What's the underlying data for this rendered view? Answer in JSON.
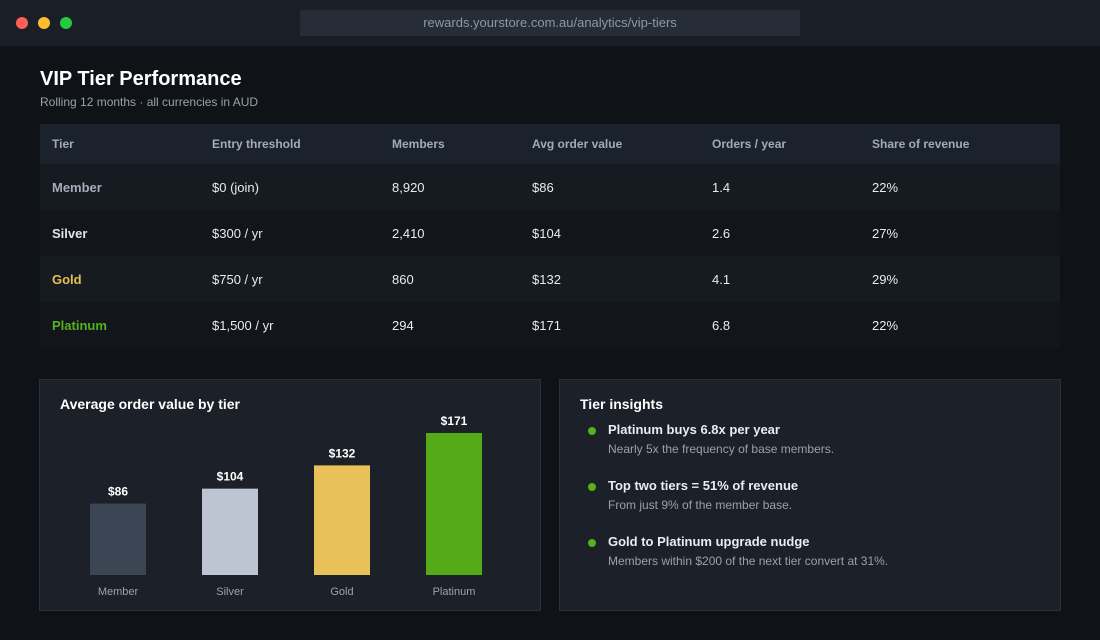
{
  "browser": {
    "url": "rewards.yourstore.com.au/analytics/vip-tiers"
  },
  "header": {
    "title": "VIP Tier Performance",
    "subtitle": "Rolling 12 months · all currencies in AUD"
  },
  "table": {
    "columns": [
      "Tier",
      "Entry threshold",
      "Members",
      "Avg order value",
      "Orders / year",
      "Share of revenue"
    ],
    "rows": [
      {
        "tier": "Member",
        "threshold": "$0 (join)",
        "members": "8,920",
        "aov": "$86",
        "orders": "1.4",
        "share": "22%",
        "color": "#a3acb8"
      },
      {
        "tier": "Silver",
        "threshold": "$300 / yr",
        "members": "2,410",
        "aov": "$104",
        "orders": "2.6",
        "share": "27%",
        "color": "#dfe4ea"
      },
      {
        "tier": "Gold",
        "threshold": "$750 / yr",
        "members": "860",
        "aov": "$132",
        "orders": "4.1",
        "share": "29%",
        "color": "#e8c050"
      },
      {
        "tier": "Platinum",
        "threshold": "$1,500 / yr",
        "members": "294",
        "aov": "$171",
        "orders": "6.8",
        "share": "22%",
        "color": "#55b21c"
      }
    ]
  },
  "chart_panel": {
    "title": "Average order value by tier"
  },
  "chart_data": {
    "type": "bar",
    "title": "Average order value by tier",
    "categories": [
      "Member",
      "Silver",
      "Gold",
      "Platinum"
    ],
    "values": [
      86,
      104,
      132,
      171
    ],
    "value_labels": [
      "$86",
      "$104",
      "$132",
      "$171"
    ],
    "colors": [
      "#3b4553",
      "#bcc5d1",
      "#e8c258",
      "#55aa17"
    ],
    "ylim": [
      0,
      171
    ],
    "grid": false,
    "legend": "none"
  },
  "insights": {
    "title": "Tier insights",
    "items": [
      {
        "heading": "Platinum buys 6.8x per year",
        "detail": "Nearly 5x the frequency of base members."
      },
      {
        "heading": "Top two tiers = 51% of revenue",
        "detail": "From just 9% of the member base."
      },
      {
        "heading": "Gold to Platinum upgrade nudge",
        "detail": "Members within $200 of the next tier convert at 31%."
      }
    ],
    "bullet_color": "#55b21c"
  }
}
